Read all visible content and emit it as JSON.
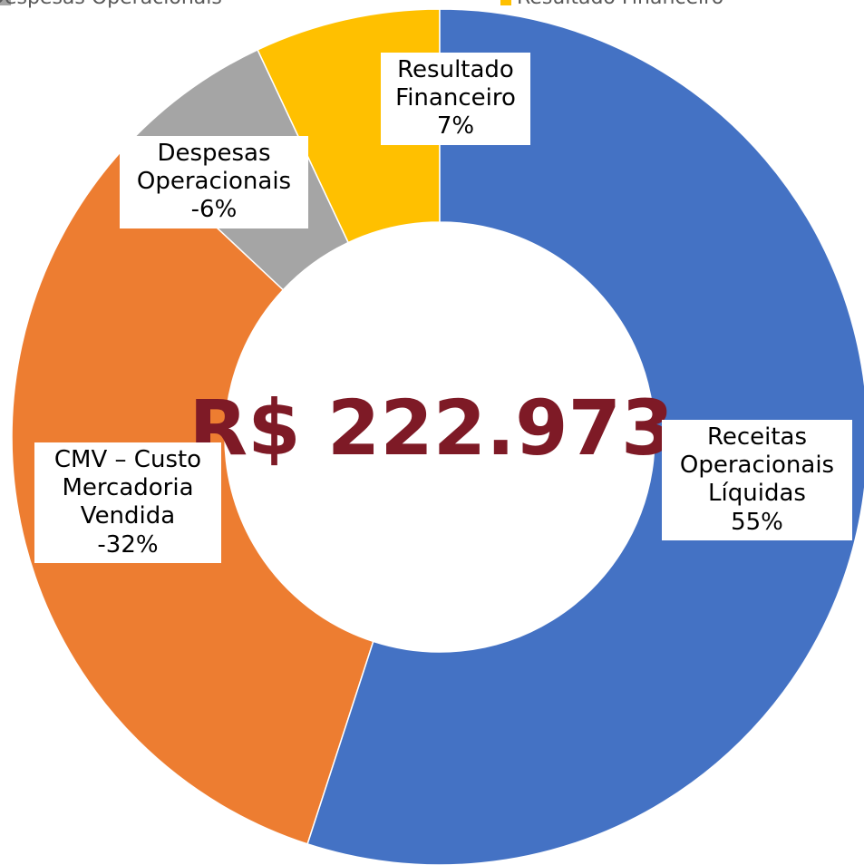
{
  "chart_data": {
    "type": "donut",
    "center_label": "R$ 222.973",
    "categories": [
      "Receitas Operacionais Líquidas",
      "CMV – Custo Mercadoria Vendida",
      "Despesas Operacionais",
      "Resultado Financeiro"
    ],
    "values": [
      55,
      -32,
      -6,
      7
    ],
    "value_labels": [
      "55%",
      "-32%",
      "-6%",
      "7%"
    ],
    "colors": [
      "#4472c4",
      "#ed7d31",
      "#a5a5a5",
      "#ffc000"
    ],
    "legend": "top"
  }
}
